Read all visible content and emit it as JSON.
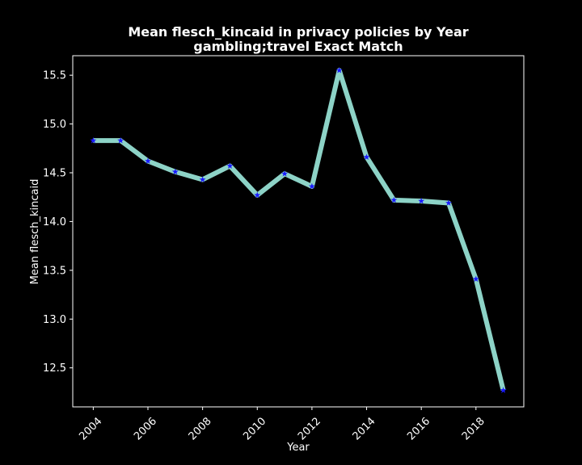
{
  "chart_data": {
    "type": "line",
    "title": "Mean flesch_kincaid in privacy policies by Year",
    "subtitle": "gambling;travel Exact Match",
    "xlabel": "Year",
    "ylabel": "Mean flesch_kincaid",
    "x": [
      2004,
      2005,
      2006,
      2007,
      2008,
      2009,
      2010,
      2011,
      2012,
      2013,
      2014,
      2015,
      2016,
      2017,
      2018,
      2019
    ],
    "series": [
      {
        "values": [
          14.83,
          14.83,
          14.62,
          14.51,
          14.43,
          14.57,
          14.27,
          14.49,
          14.36,
          15.55,
          14.66,
          14.22,
          14.21,
          14.19,
          13.41,
          12.27
        ]
      }
    ],
    "xticks": [
      "2004",
      "2006",
      "2008",
      "2010",
      "2012",
      "2014",
      "2016",
      "2018"
    ],
    "yticks": [
      "12.5",
      "13.0",
      "13.5",
      "14.0",
      "14.5",
      "15.0",
      "15.5"
    ],
    "xlim": [
      2003.25,
      2019.75
    ],
    "ylim": [
      12.1,
      15.7
    ],
    "grid": false,
    "colors": {
      "background": "#000000",
      "line": "#8dd3c7",
      "marker": "#1a1aff",
      "axes": "#ffffff",
      "text": "#ffffff"
    }
  }
}
